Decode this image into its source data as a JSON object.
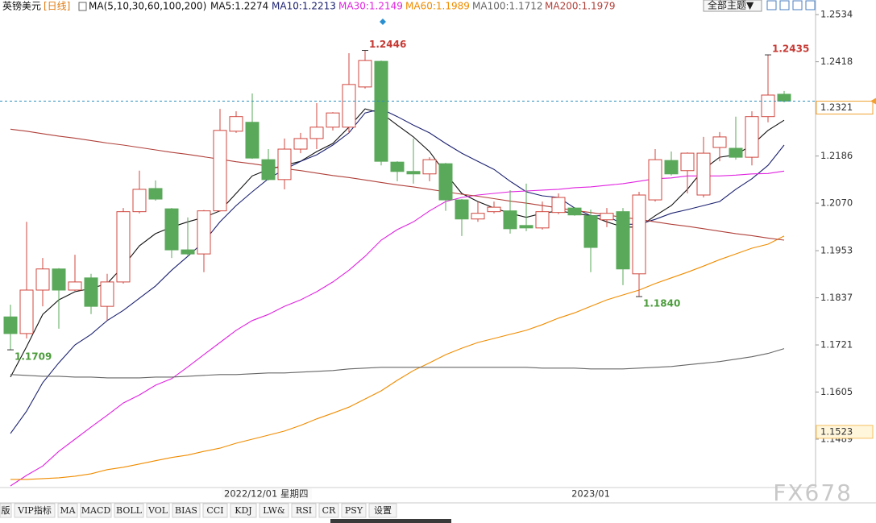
{
  "chart_data": {
    "type": "candlestick",
    "title": "英镑美元",
    "subtitle": "[日线]",
    "indicator": "MA(5,10,30,60,100,200)",
    "categories": [
      null,
      null,
      null,
      null,
      null,
      null,
      null,
      null,
      null,
      null,
      null,
      null,
      null,
      "2022/12/01 星期四",
      null,
      null,
      null,
      null,
      null,
      null,
      null,
      null,
      null,
      null,
      null,
      null,
      null,
      null,
      null,
      null,
      null,
      null,
      null,
      null,
      null,
      null,
      "2023/01",
      null,
      null,
      null,
      null,
      null,
      null,
      null,
      null,
      null,
      null,
      null,
      null
    ],
    "open": [
      1.179,
      1.1749,
      1.1856,
      1.1908,
      1.1856,
      1.1886,
      1.1816,
      1.1876,
      1.2049,
      1.2106,
      1.2056,
      1.1955,
      1.1945,
      1.2051,
      1.2247,
      1.2269,
      1.2177,
      1.2128,
      1.2203,
      1.2229,
      1.2257,
      1.2257,
      1.2356,
      1.2419,
      1.2171,
      1.2148,
      1.2142,
      1.2167,
      1.2078,
      1.2031,
      1.2049,
      1.2051,
      1.2015,
      1.2009,
      1.2047,
      1.2058,
      1.2039,
      1.2029,
      1.2049,
      1.1896,
      1.2078,
      1.2175,
      1.215,
      1.209,
      1.2207,
      1.2205,
      1.2183,
      1.2283,
      1.2338
    ],
    "high": [
      1.182,
      1.2024,
      1.1935,
      1.191,
      1.1943,
      1.1896,
      1.1896,
      1.2058,
      1.215,
      1.2126,
      1.2058,
      1.2035,
      1.2053,
      1.2302,
      1.2296,
      1.234,
      1.2203,
      1.2229,
      1.2243,
      1.2316,
      1.2294,
      1.2439,
      1.2446,
      1.2421,
      1.2173,
      1.2229,
      1.2183,
      1.2169,
      1.208,
      1.2074,
      1.2074,
      1.2102,
      1.2118,
      1.2074,
      1.2094,
      1.206,
      1.2054,
      1.2058,
      1.2058,
      1.2098,
      1.2203,
      1.2197,
      1.2195,
      1.2233,
      1.2245,
      1.2283,
      1.2296,
      1.2435,
      1.2346
    ],
    "low": [
      1.1709,
      1.1737,
      1.1816,
      1.1761,
      1.1854,
      1.1797,
      1.1781,
      1.1872,
      1.2045,
      1.2076,
      1.1935,
      1.1939,
      1.19,
      1.2049,
      1.2243,
      1.2179,
      1.2126,
      1.2104,
      1.2193,
      1.2203,
      1.2249,
      1.2243,
      1.2352,
      1.2163,
      1.2124,
      1.2118,
      1.2124,
      1.2051,
      1.1989,
      1.2024,
      1.2045,
      1.1995,
      1.2001,
      1.2005,
      1.2043,
      1.2039,
      1.19,
      1.2011,
      1.1868,
      1.184,
      1.2074,
      1.2138,
      1.2094,
      1.2084,
      1.2173,
      1.2177,
      1.2163,
      1.2269,
      1.2318
    ],
    "close": [
      1.1749,
      1.1856,
      1.1908,
      1.1856,
      1.1876,
      1.1816,
      1.1876,
      1.2049,
      1.2104,
      1.208,
      1.1955,
      1.1945,
      1.2051,
      1.2249,
      1.2283,
      1.2181,
      1.2128,
      1.2203,
      1.2229,
      1.2257,
      1.2292,
      1.2362,
      1.2421,
      1.2173,
      1.2148,
      1.2142,
      1.2177,
      1.2078,
      1.2031,
      1.2045,
      1.206,
      1.2007,
      1.2009,
      1.2049,
      1.2084,
      1.2041,
      1.1961,
      1.2045,
      1.1908,
      1.209,
      1.2177,
      1.2142,
      1.2193,
      1.2193,
      1.2233,
      1.2183,
      1.2283,
      1.2336,
      1.2321
    ],
    "high_labels": [
      null,
      null,
      null,
      null,
      null,
      null,
      null,
      null,
      null,
      null,
      null,
      null,
      null,
      null,
      null,
      null,
      null,
      null,
      null,
      null,
      null,
      null,
      "1.2446",
      null,
      null,
      null,
      null,
      null,
      null,
      null,
      null,
      null,
      null,
      null,
      null,
      null,
      null,
      null,
      null,
      null,
      null,
      null,
      null,
      null,
      null,
      null,
      null,
      "1.2435",
      null
    ],
    "low_labels": [
      "1.1709",
      null,
      null,
      null,
      null,
      null,
      null,
      null,
      null,
      null,
      null,
      null,
      null,
      null,
      null,
      null,
      null,
      null,
      null,
      null,
      null,
      null,
      null,
      null,
      null,
      null,
      null,
      null,
      null,
      null,
      null,
      null,
      null,
      null,
      null,
      null,
      null,
      null,
      null,
      "1.1840",
      null,
      null,
      null,
      null,
      null,
      null,
      null,
      null,
      null
    ],
    "up_color": "#d0473f",
    "down_color": "#5aa85a",
    "overlays": [
      {
        "name": "MA5:1.2274",
        "color": "#111111",
        "values": [
          1.1642,
          1.1717,
          1.1796,
          1.1832,
          1.1852,
          1.186,
          1.1872,
          1.1915,
          1.1965,
          1.1995,
          1.2011,
          1.2024,
          1.2035,
          1.2051,
          1.2094,
          1.2137,
          1.2153,
          1.2163,
          1.2173,
          1.2197,
          1.2217,
          1.2257,
          1.2302,
          1.2292,
          1.2262,
          1.2233,
          1.2197,
          1.2143,
          1.2094,
          1.2074,
          1.2058,
          1.2045,
          1.2035,
          1.2045,
          1.2051,
          1.2045,
          1.2039,
          1.2024,
          1.2011,
          1.2011,
          1.2039,
          1.2064,
          1.2104,
          1.2153,
          1.2183,
          1.2189,
          1.2213,
          1.2249,
          1.2274
        ]
      },
      {
        "name": "MA10:1.2213",
        "color": "#1c2270",
        "values": [
          1.1503,
          1.1558,
          1.1628,
          1.1677,
          1.1721,
          1.1747,
          1.1781,
          1.1806,
          1.1836,
          1.1866,
          1.1905,
          1.1939,
          1.1975,
          1.2024,
          1.2064,
          1.2098,
          1.213,
          1.2153,
          1.2173,
          1.2189,
          1.2213,
          1.2243,
          1.2292,
          1.2302,
          1.2283,
          1.2262,
          1.2243,
          1.2217,
          1.2193,
          1.2173,
          1.2153,
          1.2124,
          1.2098,
          1.2088,
          1.2084,
          1.2058,
          1.2039,
          1.2039,
          1.2018,
          1.2018,
          1.203,
          1.2045,
          1.2054,
          1.2064,
          1.2074,
          1.2104,
          1.213,
          1.2163,
          1.2213
        ]
      },
      {
        "name": "MA30:1.2149",
        "color": "#e024e0",
        "values": [
          1.1374,
          1.14,
          1.1423,
          1.1459,
          1.1489,
          1.1519,
          1.1548,
          1.1578,
          1.1598,
          1.1622,
          1.1638,
          1.1667,
          1.1697,
          1.1727,
          1.1757,
          1.1781,
          1.1796,
          1.1816,
          1.1832,
          1.1852,
          1.1876,
          1.1905,
          1.1939,
          1.1979,
          1.2005,
          1.2024,
          1.2051,
          1.2074,
          1.2084,
          1.209,
          1.2094,
          1.2098,
          1.21,
          1.2102,
          1.2104,
          1.2108,
          1.211,
          1.2114,
          1.2118,
          1.2124,
          1.213,
          1.2132,
          1.2137,
          1.2137,
          1.2137,
          1.2139,
          1.2142,
          1.2143,
          1.2149
        ]
      },
      {
        "name": "MA60:1.1989",
        "color": "#f08c00",
        "values": [
          1.139,
          1.139,
          1.1392,
          1.1394,
          1.1398,
          1.1404,
          1.1414,
          1.142,
          1.1428,
          1.1436,
          1.1444,
          1.145,
          1.1459,
          1.1467,
          1.1479,
          1.1489,
          1.1499,
          1.1509,
          1.1523,
          1.1539,
          1.1553,
          1.1568,
          1.1588,
          1.1608,
          1.1634,
          1.1658,
          1.1677,
          1.1697,
          1.1713,
          1.1727,
          1.1737,
          1.1747,
          1.1757,
          1.1771,
          1.1787,
          1.18,
          1.1816,
          1.1832,
          1.1844,
          1.1856,
          1.1872,
          1.1886,
          1.19,
          1.1915,
          1.1931,
          1.1945,
          1.1959,
          1.1969,
          1.1989
        ]
      },
      {
        "name": "MA100:1.1712",
        "color": "#666666",
        "values": [
          1.1648,
          1.1646,
          1.1644,
          1.1644,
          1.1642,
          1.1642,
          1.164,
          1.164,
          1.164,
          1.1642,
          1.1642,
          1.1644,
          1.1646,
          1.1648,
          1.1648,
          1.165,
          1.1652,
          1.1652,
          1.1654,
          1.1656,
          1.1658,
          1.1662,
          1.1664,
          1.1666,
          1.1666,
          1.1666,
          1.1666,
          1.1666,
          1.1666,
          1.1666,
          1.1666,
          1.1666,
          1.1666,
          1.1664,
          1.1664,
          1.1664,
          1.1662,
          1.1662,
          1.1662,
          1.1664,
          1.1666,
          1.1668,
          1.1672,
          1.1676,
          1.168,
          1.1686,
          1.1692,
          1.17,
          1.1712
        ]
      },
      {
        "name": "MA200:1.1979",
        "color": "#b0403a",
        "values": [
          1.2252,
          1.2247,
          1.2241,
          1.2235,
          1.223,
          1.2224,
          1.2218,
          1.2213,
          1.2207,
          1.2201,
          1.2195,
          1.219,
          1.2184,
          1.2178,
          1.2172,
          1.2167,
          1.2161,
          1.2155,
          1.215,
          1.2144,
          1.2138,
          1.2133,
          1.2127,
          1.2121,
          1.2115,
          1.211,
          1.2104,
          1.2098,
          1.2092,
          1.2087,
          1.2081,
          1.2075,
          1.207,
          1.2064,
          1.2058,
          1.2052,
          1.2047,
          1.2041,
          1.2035,
          1.203,
          1.2024,
          1.2018,
          1.2013,
          1.2007,
          1.2001,
          1.1995,
          1.199,
          1.1984,
          1.1979
        ]
      }
    ],
    "ylim": [
      1.137,
      1.257
    ],
    "yticks": [
      1.2534,
      1.2418,
      1.2186,
      {
        "value": 1.207,
        "label": "1.2070"
      },
      1.1953,
      1.1837,
      1.1721,
      1.1605,
      1.1489
    ],
    "marker_price": 1.1523
  },
  "theme_button": "全部主题▼",
  "toolbar": [
    "版",
    "VIP指标",
    "MA",
    "MACD",
    "BOLL",
    "VOL",
    "BIAS",
    "CCI",
    "KDJ",
    "LW&",
    "RSI",
    "CR",
    "PSY",
    "设置"
  ],
  "watermark": "FX678"
}
